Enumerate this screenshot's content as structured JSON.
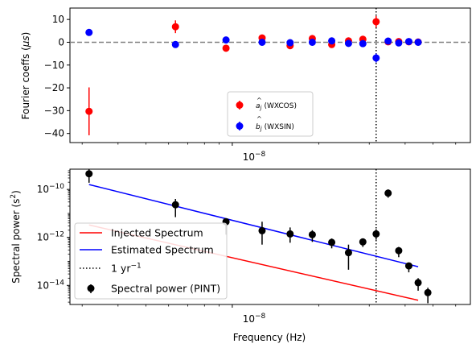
{
  "chart_data": [
    {
      "type": "scatter",
      "ylabel_main": "Fourier coeffs (",
      "ylabel_unit": "μs",
      "ylabel_close": ")",
      "xlabel": "",
      "xscale": "log",
      "xlim": [
        2.72e-09,
        6.75e-08
      ],
      "ylim": [
        -44,
        15
      ],
      "grid": false,
      "yticks": [
        10,
        0,
        -10,
        -20,
        -30,
        -40
      ],
      "yticklabels": [
        "10",
        "0",
        "−10",
        "−20",
        "−30",
        "−40"
      ],
      "xtick_label_base": "10",
      "xtick_label_exp": "−8",
      "xtick_value": 1e-08,
      "zero_line": {
        "y": 0,
        "style": "dashed",
        "color": "#808080"
      },
      "vline": {
        "x": 3.17e-08,
        "style": "dotted",
        "color": "#000000"
      },
      "legend_position": "lower-center",
      "series": [
        {
          "name": "(WXCOS)",
          "symbol_letter": "a",
          "symbol_sub": "j",
          "color": "#ff0000",
          "points": [
            {
              "x": 3.17e-09,
              "y": -30.3,
              "err": 10.5
            },
            {
              "x": 6.34e-09,
              "y": 6.8,
              "err": 2.8
            },
            {
              "x": 9.51e-09,
              "y": -2.6,
              "err": 0.6
            },
            {
              "x": 1.27e-08,
              "y": 1.9,
              "err": 0.6
            },
            {
              "x": 1.59e-08,
              "y": -1.5,
              "err": 0.5
            },
            {
              "x": 1.9e-08,
              "y": 1.6,
              "err": 0.5
            },
            {
              "x": 2.22e-08,
              "y": -1.0,
              "err": 0.5
            },
            {
              "x": 2.54e-08,
              "y": 0.6,
              "err": 0.5
            },
            {
              "x": 2.85e-08,
              "y": 1.3,
              "err": 0.5
            },
            {
              "x": 3.17e-08,
              "y": 9.0,
              "err": 2.5
            },
            {
              "x": 3.49e-08,
              "y": 0.2,
              "err": 0.5
            },
            {
              "x": 3.8e-08,
              "y": 0.3,
              "err": 0.5
            },
            {
              "x": 4.12e-08,
              "y": 0.2,
              "err": 0.5
            },
            {
              "x": 4.44e-08,
              "y": 0.1,
              "err": 0.5
            }
          ]
        },
        {
          "name": "(WXSIN)",
          "symbol_letter": "b",
          "symbol_sub": "j",
          "color": "#0000ff",
          "points": [
            {
              "x": 3.17e-09,
              "y": 4.3,
              "err": 0.5
            },
            {
              "x": 6.34e-09,
              "y": -1.0,
              "err": 0.5
            },
            {
              "x": 9.51e-09,
              "y": 1.0,
              "err": 0.5
            },
            {
              "x": 1.27e-08,
              "y": 0.0,
              "err": 0.5
            },
            {
              "x": 1.59e-08,
              "y": -0.2,
              "err": 0.5
            },
            {
              "x": 1.9e-08,
              "y": 0.0,
              "err": 0.5
            },
            {
              "x": 2.22e-08,
              "y": 0.6,
              "err": 0.5
            },
            {
              "x": 2.54e-08,
              "y": -0.5,
              "err": 0.5
            },
            {
              "x": 2.85e-08,
              "y": -0.6,
              "err": 0.5
            },
            {
              "x": 3.17e-08,
              "y": -6.9,
              "err": 2.0
            },
            {
              "x": 3.49e-08,
              "y": 0.5,
              "err": 0.5
            },
            {
              "x": 3.8e-08,
              "y": -0.3,
              "err": 0.5
            },
            {
              "x": 4.12e-08,
              "y": 0.3,
              "err": 0.5
            },
            {
              "x": 4.44e-08,
              "y": 0.0,
              "err": 0.5
            }
          ]
        }
      ]
    },
    {
      "type": "line",
      "ylabel_main": "Spectral power (s",
      "ylabel_exp": "2",
      "ylabel_close": ")",
      "xlabel": "Frequency (Hz)",
      "xscale": "log",
      "yscale": "log",
      "xlim": [
        2.72e-09,
        6.75e-08
      ],
      "ylim": [
        1.6e-15,
        7e-10
      ],
      "grid": false,
      "yticks": [
        1e-10,
        1e-12,
        1e-14
      ],
      "yticklabels_base": "10",
      "yticklabels_exp": [
        "−10",
        "−12",
        "−14"
      ],
      "xtick_label_base": "10",
      "xtick_label_exp": "−8",
      "xtick_value": 1e-08,
      "vline": {
        "x": 3.17e-08,
        "style": "dotted",
        "color": "#000000"
      },
      "legend_position": "lower-left",
      "lines": [
        {
          "name": "Injected Spectrum",
          "color": "#ff0000",
          "x": [
            3.17e-09,
            4.44e-08
          ],
          "y": [
            3.3e-12,
            2.4e-15
          ]
        },
        {
          "name": "Estimated Spectrum",
          "color": "#0000ff",
          "x": [
            3.17e-09,
            4.44e-08
          ],
          "y": [
            1.6e-10,
            6e-14
          ]
        }
      ],
      "vline_legend": {
        "name_base": "1 yr",
        "name_exp": "−1"
      },
      "points_series": {
        "name": "Spectral power (PINT)",
        "color": "#000000",
        "points": [
          {
            "x": 3.17e-09,
            "y": 4.5e-10,
            "lo": 1.9e-10,
            "hi": 7e-10
          },
          {
            "x": 6.34e-09,
            "y": 2.3e-11,
            "lo": 7e-12,
            "hi": 4e-11
          },
          {
            "x": 9.51e-09,
            "y": 4.5e-12,
            "lo": 1.3e-12,
            "hi": 6e-12
          },
          {
            "x": 1.27e-08,
            "y": 1.9e-12,
            "lo": 5e-13,
            "hi": 4.5e-12
          },
          {
            "x": 1.59e-08,
            "y": 1.4e-12,
            "lo": 6e-13,
            "hi": 2.6e-12
          },
          {
            "x": 1.9e-08,
            "y": 1.3e-12,
            "lo": 6.5e-13,
            "hi": 2e-12
          },
          {
            "x": 2.22e-08,
            "y": 6.2e-13,
            "lo": 3.5e-13,
            "hi": 9e-13
          },
          {
            "x": 2.54e-08,
            "y": 2.3e-13,
            "lo": 4.5e-14,
            "hi": 5e-13
          },
          {
            "x": 2.85e-08,
            "y": 6.5e-13,
            "lo": 4e-13,
            "hi": 9e-13
          },
          {
            "x": 3.17e-08,
            "y": 1.4e-12,
            "lo": 8e-13,
            "hi": 2.2e-12
          },
          {
            "x": 3.49e-08,
            "y": 7e-11,
            "lo": 4.5e-11,
            "hi": 1e-10
          },
          {
            "x": 3.8e-08,
            "y": 2.8e-13,
            "lo": 1.5e-13,
            "hi": 4e-13
          },
          {
            "x": 4.12e-08,
            "y": 6.5e-14,
            "lo": 3.5e-14,
            "hi": 8.5e-14
          },
          {
            "x": 4.44e-08,
            "y": 1.3e-14,
            "lo": 6e-15,
            "hi": 2e-14
          },
          {
            "x": 4.8e-08,
            "y": 5e-15,
            "lo": 1.8e-15,
            "hi": 8e-15
          }
        ]
      }
    }
  ]
}
